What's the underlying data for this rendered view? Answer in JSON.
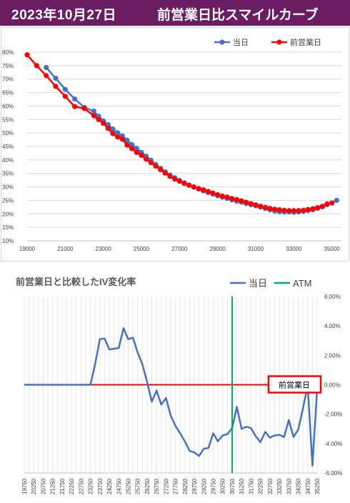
{
  "header": {
    "date": "2023年10月27日",
    "title": "前営業日比スマイルカーブ"
  },
  "colors": {
    "header_bg": "#6b1d63",
    "today": "#4472c4",
    "prev": "#ff0000",
    "atm": "#00b050",
    "zero_line": "#ff0000"
  },
  "chart_data": [
    {
      "type": "line",
      "title": "",
      "xlabel": "",
      "ylabel": "",
      "xlim": [
        19000,
        35500
      ],
      "ylim": [
        10,
        80
      ],
      "x_ticks": [
        "19000",
        "21000",
        "23000",
        "25000",
        "27000",
        "29000",
        "31000",
        "33000",
        "35000"
      ],
      "y_ticks": [
        "10%",
        "15%",
        "20%",
        "25%",
        "30%",
        "35%",
        "40%",
        "45%",
        "50%",
        "55%",
        "60%",
        "65%",
        "70%",
        "75%",
        "80%"
      ],
      "legend_position": "top-right",
      "grid": "horizontal",
      "series": [
        {
          "name": "当日",
          "color": "#4472c4",
          "points": [
            [
              20000,
              74.3
            ],
            [
              20500,
              70.3
            ],
            [
              21000,
              66.2
            ],
            [
              21500,
              62.6
            ],
            [
              22000,
              59.5
            ],
            [
              22500,
              58.1
            ],
            [
              22750,
              56.2
            ],
            [
              23000,
              54.5
            ],
            [
              23250,
              53.1
            ],
            [
              23500,
              51.5
            ],
            [
              23750,
              50.1
            ],
            [
              24000,
              48.9
            ],
            [
              24250,
              47.3
            ],
            [
              24500,
              45.7
            ],
            [
              24750,
              44.3
            ],
            [
              25000,
              42.8
            ],
            [
              25250,
              41.4
            ],
            [
              25500,
              39.9
            ],
            [
              25750,
              38.3
            ],
            [
              26000,
              36.9
            ],
            [
              26250,
              35.6
            ],
            [
              26500,
              34.4
            ],
            [
              26750,
              33.4
            ],
            [
              27000,
              32.4
            ],
            [
              27250,
              31.5
            ],
            [
              27500,
              30.7
            ],
            [
              27750,
              29.9
            ],
            [
              28000,
              29.2
            ],
            [
              28250,
              28.5
            ],
            [
              28500,
              27.9
            ],
            [
              28750,
              27.3
            ],
            [
              29000,
              26.7
            ],
            [
              29250,
              26.2
            ],
            [
              29500,
              25.7
            ],
            [
              29750,
              25.2
            ],
            [
              30000,
              24.7
            ],
            [
              30250,
              24.3
            ],
            [
              30500,
              23.8
            ],
            [
              30750,
              23.4
            ],
            [
              31000,
              23.0
            ],
            [
              31250,
              22.5
            ],
            [
              31500,
              22.0
            ],
            [
              31750,
              21.5
            ],
            [
              32000,
              21.0
            ],
            [
              32250,
              20.8
            ],
            [
              32500,
              20.7
            ],
            [
              32750,
              20.7
            ],
            [
              33000,
              20.6
            ],
            [
              33250,
              20.7
            ],
            [
              33500,
              20.9
            ],
            [
              33750,
              21.2
            ],
            [
              34000,
              21.5
            ],
            [
              34250,
              22.0
            ],
            [
              34500,
              22.6
            ],
            [
              34750,
              23.4
            ],
            [
              35250,
              25.0
            ]
          ]
        },
        {
          "name": "前営業日",
          "color": "#ff0000",
          "points": [
            [
              19000,
              79.0
            ],
            [
              19500,
              75.0
            ],
            [
              20000,
              71.3
            ],
            [
              20500,
              67.3
            ],
            [
              21000,
              63.6
            ],
            [
              21500,
              59.8
            ],
            [
              22000,
              59.1
            ],
            [
              22500,
              56.4
            ],
            [
              22750,
              55.0
            ],
            [
              23000,
              53.6
            ],
            [
              23250,
              51.7
            ],
            [
              23500,
              49.8
            ],
            [
              23750,
              48.5
            ],
            [
              24000,
              47.7
            ],
            [
              24250,
              45.5
            ],
            [
              24500,
              44.2
            ],
            [
              24750,
              42.8
            ],
            [
              25000,
              41.7
            ],
            [
              25250,
              40.3
            ],
            [
              25500,
              39.0
            ],
            [
              25750,
              37.7
            ],
            [
              26000,
              36.4
            ],
            [
              26250,
              35.1
            ],
            [
              26500,
              33.9
            ],
            [
              26750,
              32.9
            ],
            [
              27000,
              32.1
            ],
            [
              27250,
              31.3
            ],
            [
              27500,
              30.6
            ],
            [
              27750,
              30.0
            ],
            [
              28000,
              29.4
            ],
            [
              28250,
              28.9
            ],
            [
              28500,
              28.3
            ],
            [
              28750,
              27.7
            ],
            [
              29000,
              27.1
            ],
            [
              29250,
              26.6
            ],
            [
              29500,
              26.2
            ],
            [
              29750,
              25.7
            ],
            [
              30000,
              25.3
            ],
            [
              30250,
              24.8
            ],
            [
              30500,
              24.3
            ],
            [
              30750,
              23.8
            ],
            [
              31000,
              23.3
            ],
            [
              31250,
              22.8
            ],
            [
              31500,
              22.4
            ],
            [
              31750,
              22.0
            ],
            [
              32000,
              21.7
            ],
            [
              32250,
              21.5
            ],
            [
              32500,
              21.3
            ],
            [
              32750,
              21.2
            ],
            [
              33000,
              21.2
            ],
            [
              33250,
              21.2
            ],
            [
              33500,
              21.3
            ],
            [
              33750,
              21.6
            ],
            [
              34000,
              21.9
            ],
            [
              34250,
              22.3
            ],
            [
              34500,
              22.8
            ],
            [
              34750,
              23.7
            ],
            [
              35000,
              24.0
            ]
          ]
        }
      ]
    },
    {
      "type": "line",
      "title": "前営業日と比較したIV変化率",
      "xlabel": "",
      "ylabel": "",
      "ylim": [
        -6,
        6
      ],
      "y_ticks": [
        "6.00%",
        "4.00%",
        "2.00%",
        "0.00%",
        "-2.00%",
        "-4.00%",
        "-6.00%"
      ],
      "y_axis_side": "right",
      "legend_position": "top-right",
      "grid": "vertical",
      "categories": [
        "19750",
        "20000",
        "20250",
        "20500",
        "20750",
        "21000",
        "21250",
        "21500",
        "21750",
        "22000",
        "22250",
        "22500",
        "22750",
        "23000",
        "23250",
        "23500",
        "23750",
        "24000",
        "24250",
        "24500",
        "24750",
        "25000",
        "25250",
        "25500",
        "25750",
        "26000",
        "26250",
        "26500",
        "26750",
        "27000",
        "27250",
        "27500",
        "27750",
        "28000",
        "28250",
        "28500",
        "28750",
        "29000",
        "29250",
        "29500",
        "29750",
        "30000",
        "30250",
        "30500",
        "30750",
        "31000",
        "31250",
        "31500",
        "31750",
        "32000",
        "32250",
        "32500",
        "32750",
        "33000",
        "33250",
        "33500",
        "33750",
        "34000",
        "34250",
        "34500",
        "34750",
        "35000",
        "35250"
      ],
      "tick_labels": [
        "19750",
        "20250",
        "20750",
        "21250",
        "21750",
        "22250",
        "22750",
        "23250",
        "23750",
        "24250",
        "24750",
        "25250",
        "25750",
        "26250",
        "26750",
        "27250",
        "27750",
        "28250",
        "28750",
        "29250",
        "29750",
        "30250",
        "30750",
        "31250",
        "31750",
        "32250",
        "32750",
        "33250",
        "33750",
        "34250",
        "34750",
        "35250"
      ],
      "series": [
        {
          "name": "当日",
          "color": "#4472c4",
          "values": [
            0.0,
            0.0,
            0.0,
            0.0,
            0.0,
            0.0,
            0.0,
            0.0,
            0.0,
            0.0,
            0.0,
            0.0,
            0.0,
            0.0,
            0.0,
            1.4,
            3.1,
            3.15,
            2.4,
            2.45,
            2.5,
            3.85,
            3.1,
            3.2,
            2.2,
            1.4,
            0.2,
            -1.15,
            -0.4,
            -1.35,
            -0.9,
            -2.1,
            -2.8,
            -3.3,
            -3.85,
            -4.5,
            -4.6,
            -4.85,
            -4.35,
            -4.3,
            -3.3,
            -3.85,
            -3.45,
            -3.35,
            -2.95,
            -1.5,
            -3.0,
            -2.85,
            -2.95,
            -3.5,
            -3.9,
            -3.2,
            -3.6,
            -3.45,
            -3.4,
            -3.55,
            -2.4,
            -3.55,
            -3.05,
            -1.6,
            -0.05,
            -5.5,
            -0.3
          ]
        },
        {
          "name": "ATM",
          "color": "#00b050",
          "x_category": "30750"
        }
      ],
      "annotation": {
        "text": "前営業日",
        "y": 0
      }
    }
  ]
}
